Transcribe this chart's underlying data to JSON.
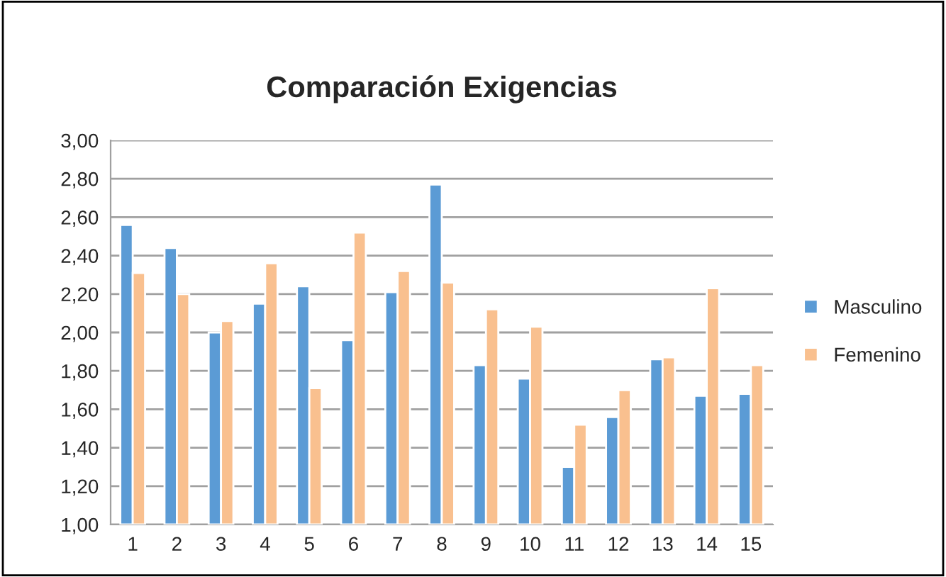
{
  "chart_data": {
    "type": "bar",
    "title": "Comparación Exigencias",
    "categories": [
      "1",
      "2",
      "3",
      "4",
      "5",
      "6",
      "7",
      "8",
      "9",
      "10",
      "11",
      "12",
      "13",
      "14",
      "15"
    ],
    "series": [
      {
        "name": "Masculino",
        "color": "#5b9bd5",
        "values": [
          2.56,
          2.44,
          2.0,
          2.15,
          2.24,
          1.96,
          2.21,
          2.77,
          1.83,
          1.76,
          1.3,
          1.56,
          1.86,
          1.67,
          1.68
        ]
      },
      {
        "name": "Femenino",
        "color": "#f9c08f",
        "values": [
          2.31,
          2.2,
          2.06,
          2.36,
          1.71,
          2.52,
          2.32,
          2.26,
          2.12,
          2.03,
          1.52,
          1.7,
          1.87,
          2.23,
          1.83
        ]
      }
    ],
    "ylim": [
      1.0,
      3.0
    ],
    "yticks": [
      {
        "value": 1.0,
        "label": "1,00"
      },
      {
        "value": 1.2,
        "label": "1,20"
      },
      {
        "value": 1.4,
        "label": "1,40"
      },
      {
        "value": 1.6,
        "label": "1,60"
      },
      {
        "value": 1.8,
        "label": "1,80"
      },
      {
        "value": 2.0,
        "label": "2,00"
      },
      {
        "value": 2.2,
        "label": "2,20"
      },
      {
        "value": 2.4,
        "label": "2,40"
      },
      {
        "value": 2.6,
        "label": "2,60"
      },
      {
        "value": 2.8,
        "label": "2,80"
      },
      {
        "value": 3.0,
        "label": "3,00"
      }
    ],
    "grid": "y",
    "legend": "right"
  }
}
